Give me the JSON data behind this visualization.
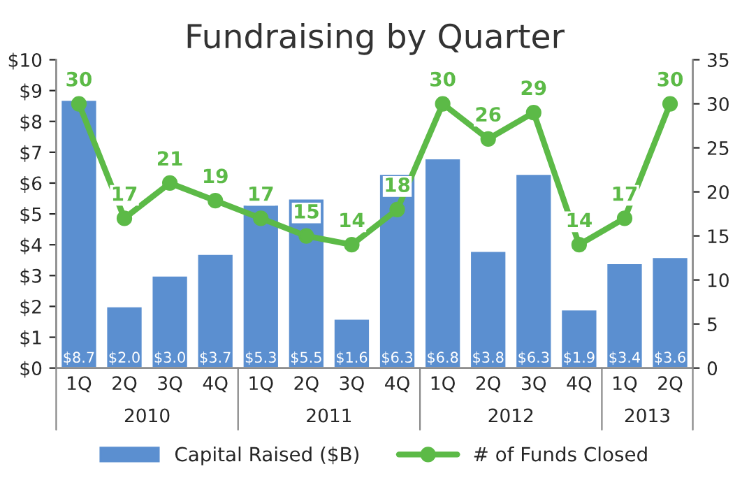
{
  "chart_data": {
    "type": "bar",
    "title": "Fundraising by Quarter",
    "categories": [
      "1Q",
      "2Q",
      "3Q",
      "4Q",
      "1Q",
      "2Q",
      "3Q",
      "4Q",
      "1Q",
      "2Q",
      "3Q",
      "4Q",
      "1Q",
      "2Q"
    ],
    "annotations": [
      "2010",
      "2011",
      "2012",
      "2013"
    ],
    "series": [
      {
        "name": "Capital Raised ($B)",
        "color": "#5b8fd0",
        "values": [
          8.7,
          2.0,
          3.0,
          3.7,
          5.3,
          5.5,
          1.6,
          6.3,
          6.8,
          3.8,
          6.3,
          1.9,
          3.4,
          3.6
        ],
        "value_labels": [
          "$8.7",
          "$2.0",
          "$3.0",
          "$3.7",
          "$5.3",
          "$5.5",
          "$1.6",
          "$6.3",
          "$6.8",
          "$3.8",
          "$6.3",
          "$1.9",
          "$3.4",
          "$3.6"
        ]
      },
      {
        "name": "# of Funds Closed",
        "type": "line",
        "axis": "y2",
        "color": "#5cba47",
        "marker": "circle",
        "values": [
          30,
          17,
          21,
          19,
          17,
          15,
          14,
          18,
          30,
          26,
          29,
          14,
          17,
          30
        ],
        "value_labels": [
          "30",
          "17",
          "21",
          "19",
          "17",
          "15",
          "14",
          "18",
          "30",
          "26",
          "29",
          "14",
          "17",
          "30"
        ]
      }
    ],
    "ylim": [
      0,
      10
    ],
    "yticks": [
      {
        "value": 0,
        "label": "$0"
      },
      {
        "value": 1,
        "label": "$1"
      },
      {
        "value": 2,
        "label": "$2"
      },
      {
        "value": 3,
        "label": "$3"
      },
      {
        "value": 4,
        "label": "$4"
      },
      {
        "value": 5,
        "label": "$5"
      },
      {
        "value": 6,
        "label": "$6"
      },
      {
        "value": 7,
        "label": "$7"
      },
      {
        "value": 8,
        "label": "$8"
      },
      {
        "value": 9,
        "label": "$9"
      },
      {
        "value": 10,
        "label": "$10"
      }
    ],
    "y2lim": [
      0,
      35
    ],
    "y2ticks": [
      0,
      5,
      10,
      15,
      20,
      25,
      30,
      35
    ],
    "grid": false,
    "legend": "bottom"
  }
}
